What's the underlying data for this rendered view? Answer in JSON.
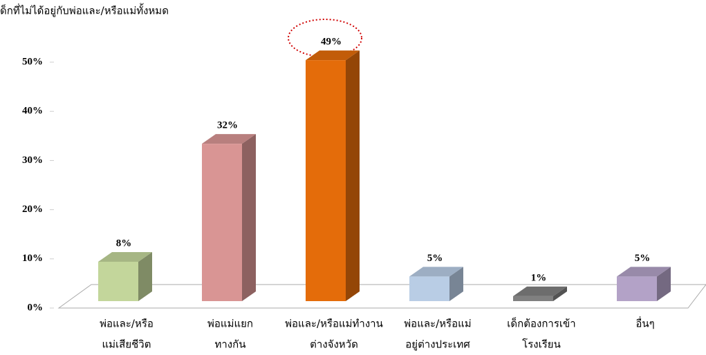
{
  "chart_data": {
    "type": "bar3d",
    "title": "ด็กที่ไม่ได้อยู่กับพ่อและ/หรือแม่ทั้งหมด",
    "categories": [
      [
        "พ่อและ/หรือ",
        "แม่เสียชีวิต"
      ],
      [
        "พ่อแม่แยก",
        "ทางกัน"
      ],
      [
        "พ่อและ/หรือแม่ทำงาน",
        "ต่างจังหวัด"
      ],
      [
        "พ่อและ/หรือแม่",
        "อยู่ต่างประเทศ"
      ],
      [
        "เด็กต้องการเข้า",
        "โรงเรียน"
      ],
      [
        "อื่นๆ"
      ]
    ],
    "values": [
      8,
      32,
      49,
      5,
      1,
      5
    ],
    "value_labels": [
      "8%",
      "32%",
      "49%",
      "5%",
      "1%",
      "5%"
    ],
    "colors": [
      "#c3d69b",
      "#d99594",
      "#e46c0a",
      "#b9cde5",
      "#808080",
      "#b3a2c7"
    ],
    "ylim": [
      0,
      50
    ],
    "yticks": [
      {
        "value": 0,
        "label": "0%"
      },
      {
        "value": 10,
        "label": "10%"
      },
      {
        "value": 20,
        "label": "20%"
      },
      {
        "value": 30,
        "label": "30%"
      },
      {
        "value": 40,
        "label": "40%"
      },
      {
        "value": 50,
        "label": "50%"
      }
    ]
  }
}
